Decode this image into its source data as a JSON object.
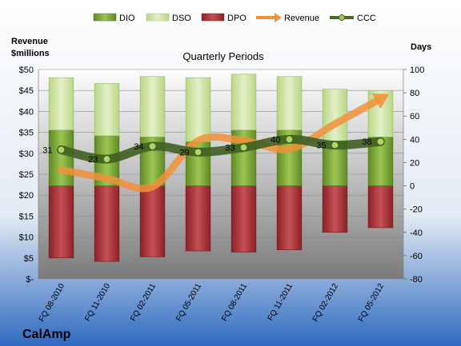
{
  "chart_data": {
    "type": "bar",
    "title": "Quarterly Periods",
    "company": "CalAmp",
    "left_axis_label": [
      "Revenue",
      "$millions"
    ],
    "right_axis_label": "Days",
    "legend_position": "top",
    "categories": [
      "FQ 08-2010",
      "FQ 11-2010",
      "FQ 02-2011",
      "FQ 05-2011",
      "FQ 08-2011",
      "FQ 11-2011",
      "FQ 02-2012",
      "FQ 05-2012"
    ],
    "left_ticks": [
      "$-",
      "$5",
      "$10",
      "$15",
      "$20",
      "$25",
      "$30",
      "$35",
      "$40",
      "$45",
      "$50"
    ],
    "left_ylim": [
      0,
      50
    ],
    "right_ticks": [
      "-80",
      "-60",
      "-40",
      "-20",
      "0",
      "20",
      "40",
      "60",
      "80",
      "100"
    ],
    "right_ylim": [
      -80,
      100
    ],
    "series": [
      {
        "name": "DIO",
        "axis": "right",
        "values": [
          48,
          43,
          42,
          38,
          48,
          48,
          38,
          42
        ]
      },
      {
        "name": "DSO",
        "axis": "right",
        "values": [
          45,
          45,
          52,
          55,
          48,
          46,
          45,
          40
        ]
      },
      {
        "name": "DPO",
        "axis": "right",
        "values": [
          -62,
          -65,
          -61,
          -56,
          -57,
          -55,
          -40,
          -36
        ]
      },
      {
        "name": "Revenue",
        "axis": "left",
        "values": [
          26,
          24,
          22,
          33,
          33,
          31,
          37,
          43
        ]
      },
      {
        "name": "CCC",
        "axis": "right",
        "values": [
          31,
          23,
          34,
          29,
          33,
          40,
          35,
          38
        ]
      }
    ],
    "ccc_labels": [
      "31",
      "23",
      "34",
      "29",
      "33",
      "40",
      "35",
      "38"
    ],
    "colors": {
      "DIO": "#7fa83a",
      "DSO": "#cfe3a3",
      "DPO": "#a8393d",
      "Revenue": "#f0923a",
      "CCC": "#4a6a2a",
      "background_top": "#f8f9fb",
      "background_bottom": "#2f6ac0"
    }
  }
}
